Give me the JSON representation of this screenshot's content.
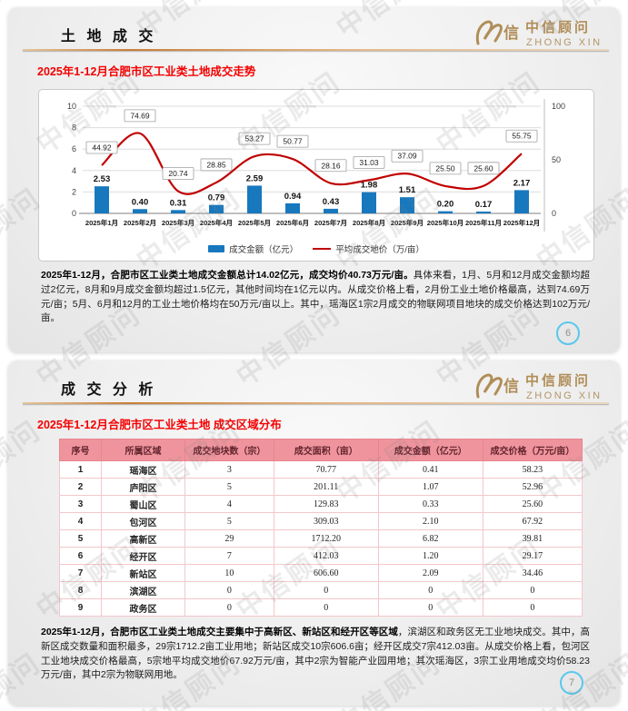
{
  "watermark": {
    "text": "中信顾问"
  },
  "logo": {
    "name_cn": "中信顾问",
    "name_en": "ZHONG XIN",
    "glyph_char": "信",
    "color": "#b08d57"
  },
  "colors": {
    "bar_blue": "#1878be",
    "line_red": "#c00000",
    "title_red": "#f40000",
    "table_header_bg": "#ef949d",
    "table_header_text": "#63242e",
    "page_circle": "#59c8ec"
  },
  "slide1": {
    "header": "土 地 成 交",
    "subtitle": "2025年1-12月合肥市区工业类土地成交走势",
    "paragraph": {
      "bold": "2025年1-12月，合肥市区工业类土地成交金额总计14.02亿元，成交均价40.73万元/亩。",
      "rest": "具体来看，1月、5月和12月成交金额均超过2亿元，8月和9月成交金额均超过1.5亿元，其他时间均在1亿元以内。从成交价格上看，2月份工业土地价格最高，达到74.69万元/亩；5月、6月和12月的工业土地价格均在50万元/亩以上。其中，瑶海区1宗2月成交的物联网项目地块的成交价格达到102万元/亩。"
    },
    "page_number": "6"
  },
  "chart_data": {
    "type": "bar",
    "title": "2025年1-12月合肥市区工业类土地成交走势",
    "categories": [
      "2025年1月",
      "2025年2月",
      "2025年3月",
      "2025年4月",
      "2025年5月",
      "2025年6月",
      "2025年7月",
      "2025年8月",
      "2025年9月",
      "2025年10月",
      "2025年11月",
      "2025年12月"
    ],
    "series": [
      {
        "name": "成交金额（亿元）",
        "type": "bar",
        "axis": "left",
        "color": "#1878be",
        "values": [
          2.53,
          0.4,
          0.31,
          0.79,
          2.59,
          0.94,
          0.43,
          1.98,
          1.51,
          0.2,
          0.17,
          2.17
        ]
      },
      {
        "name": "平均成交地价（万/亩）",
        "type": "line",
        "axis": "right",
        "color": "#c00000",
        "values": [
          44.92,
          74.69,
          20.74,
          28.85,
          53.27,
          50.77,
          28.16,
          31.03,
          37.09,
          25.5,
          25.6,
          55.75
        ]
      }
    ],
    "left_axis": {
      "min": 0,
      "max": 10,
      "ticks": [
        0,
        2,
        4,
        6,
        8,
        10
      ]
    },
    "right_axis": {
      "min": 0,
      "max": 100,
      "ticks": [
        0,
        50,
        100
      ]
    },
    "grid": true,
    "legend_position": "bottom",
    "xlabel": "",
    "ylabel": ""
  },
  "slide2": {
    "header": "成 交 分 析",
    "subtitle": "2025年1-12月合肥市区工业类土地 成交区域分布",
    "table": {
      "headers": [
        "序号",
        "所属区域",
        "成交地块数（宗）",
        "成交面积（亩）",
        "成交金额（亿元）",
        "成交价格（万元/亩）"
      ],
      "col_widths": [
        "8%",
        "16%",
        "17%",
        "20%",
        "20%",
        "19%"
      ],
      "rows": [
        [
          "1",
          "瑶海区",
          "3",
          "70.77",
          "0.41",
          "58.23"
        ],
        [
          "2",
          "庐阳区",
          "5",
          "201.11",
          "1.07",
          "52.96"
        ],
        [
          "3",
          "蜀山区",
          "4",
          "129.83",
          "0.33",
          "25.60"
        ],
        [
          "4",
          "包河区",
          "5",
          "309.03",
          "2.10",
          "67.92"
        ],
        [
          "5",
          "高新区",
          "29",
          "1712.20",
          "6.82",
          "39.81"
        ],
        [
          "6",
          "经开区",
          "7",
          "412.03",
          "1.20",
          "29.17"
        ],
        [
          "7",
          "新站区",
          "10",
          "606.60",
          "2.09",
          "34.46"
        ],
        [
          "8",
          "滨湖区",
          "0",
          "0",
          "0",
          "0"
        ],
        [
          "9",
          "政务区",
          "0",
          "0",
          "0",
          "0"
        ]
      ]
    },
    "paragraph": {
      "bold": "2025年1-12月，合肥市区工业类土地成交主要集中于高新区、新站区和经开区等区域",
      "rest": "，滨湖区和政务区无工业地块成交。其中，高新区成交数量和面积最多，29宗1712.2亩工业用地；新站区成交10宗606.6亩；经开区成交7宗412.03亩。从成交价格上看，包河区工业地块成交价格最高，5宗地平均成交地价67.92万元/亩，其中2宗为智能产业园用地；其次瑶海区，3宗工业用地成交均价58.23万元/亩，其中2宗为物联网用地。"
    },
    "page_number": "7"
  }
}
